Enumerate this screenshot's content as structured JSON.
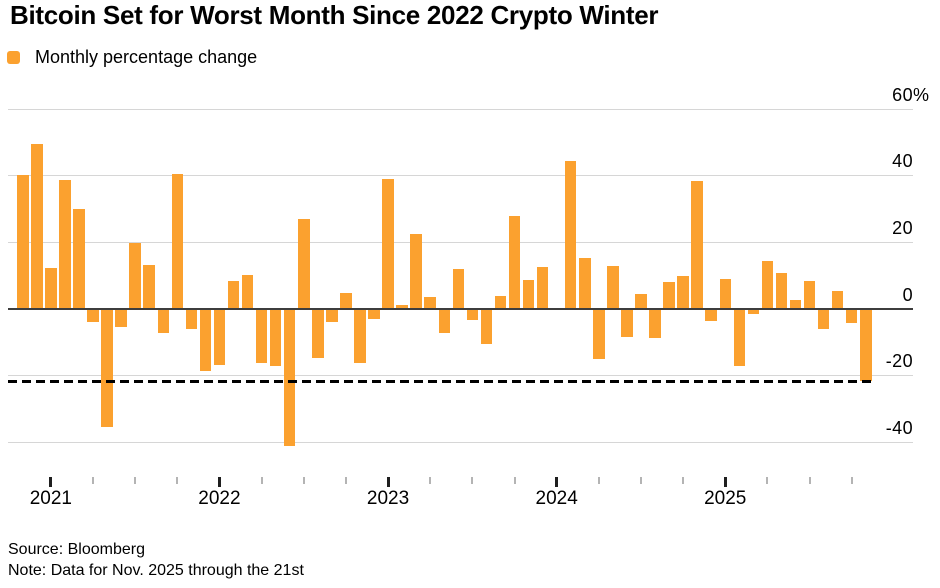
{
  "header": {
    "title": "Bitcoin Set for Worst Month Since 2022 Crypto Winter",
    "legend_label": "Monthly percentage change"
  },
  "colors": {
    "bar": "#FBA12F",
    "gridline": "#d6d6d6",
    "zero_line": "#3d3d3d",
    "reference_line": "#000000",
    "year_tick": "#1f1f1f",
    "minor_tick": "#b4b4b4",
    "text": "#000000"
  },
  "chart_data": {
    "type": "bar",
    "title": "Bitcoin Set for Worst Month Since 2022 Crypto Winter",
    "legend": [
      "Monthly percentage change"
    ],
    "legend_position": "top-left",
    "unit": "%",
    "ylabel": "",
    "xlabel": "",
    "ylim": [
      -46,
      62
    ],
    "grid": "horizontal",
    "x": [
      "2020-11",
      "2020-12",
      "2021-01",
      "2021-02",
      "2021-03",
      "2021-04",
      "2021-05",
      "2021-06",
      "2021-07",
      "2021-08",
      "2021-09",
      "2021-10",
      "2021-11",
      "2021-12",
      "2022-01",
      "2022-02",
      "2022-03",
      "2022-04",
      "2022-05",
      "2022-06",
      "2022-07",
      "2022-08",
      "2022-09",
      "2022-10",
      "2022-11",
      "2022-12",
      "2023-01",
      "2023-02",
      "2023-03",
      "2023-04",
      "2023-05",
      "2023-06",
      "2023-07",
      "2023-08",
      "2023-09",
      "2023-10",
      "2023-11",
      "2023-12",
      "2024-01",
      "2024-02",
      "2024-03",
      "2024-04",
      "2024-05",
      "2024-06",
      "2024-07",
      "2024-08",
      "2024-09",
      "2024-10",
      "2024-11",
      "2024-12",
      "2025-01",
      "2025-02",
      "2025-03",
      "2025-04",
      "2025-05",
      "2025-06",
      "2025-07",
      "2025-08",
      "2025-09",
      "2025-10",
      "2025-11"
    ],
    "values": [
      40.0,
      49.5,
      12.3,
      38.5,
      30.0,
      -4.2,
      -35.5,
      -5.7,
      19.8,
      13.0,
      -7.5,
      40.3,
      -6.3,
      -18.8,
      -17.0,
      8.2,
      10.0,
      -16.3,
      -17.3,
      -41.3,
      26.9,
      -15.0,
      -4.0,
      4.8,
      -16.5,
      -3.2,
      38.8,
      1.1,
      22.5,
      3.4,
      -7.4,
      11.9,
      -3.6,
      -10.7,
      3.9,
      27.7,
      8.7,
      12.4,
      0.3,
      44.4,
      15.1,
      -15.3,
      12.9,
      -8.5,
      4.4,
      -8.8,
      7.9,
      9.8,
      38.4,
      -3.7,
      8.9,
      -17.4,
      -1.8,
      14.3,
      10.7,
      2.5,
      8.3,
      -6.1,
      5.2,
      -4.4,
      -21.9
    ],
    "y_ticks": [
      {
        "value": 60,
        "label": "60",
        "suffix": "%"
      },
      {
        "value": 40,
        "label": "40",
        "suffix": ""
      },
      {
        "value": 20,
        "label": "20",
        "suffix": ""
      },
      {
        "value": 0,
        "label": "0",
        "suffix": ""
      },
      {
        "value": -20,
        "label": "-20",
        "suffix": ""
      },
      {
        "value": -40,
        "label": "-40",
        "suffix": ""
      }
    ],
    "x_year_labels": [
      "2021",
      "2022",
      "2023",
      "2024",
      "2025"
    ],
    "minor_tick_months": [
      "04",
      "07",
      "10"
    ],
    "reference_line": {
      "value": -21.9,
      "style": "dashed"
    }
  },
  "footer": {
    "source": "Source: Bloomberg",
    "note": "Note: Data for Nov. 2025 through the 21st"
  }
}
